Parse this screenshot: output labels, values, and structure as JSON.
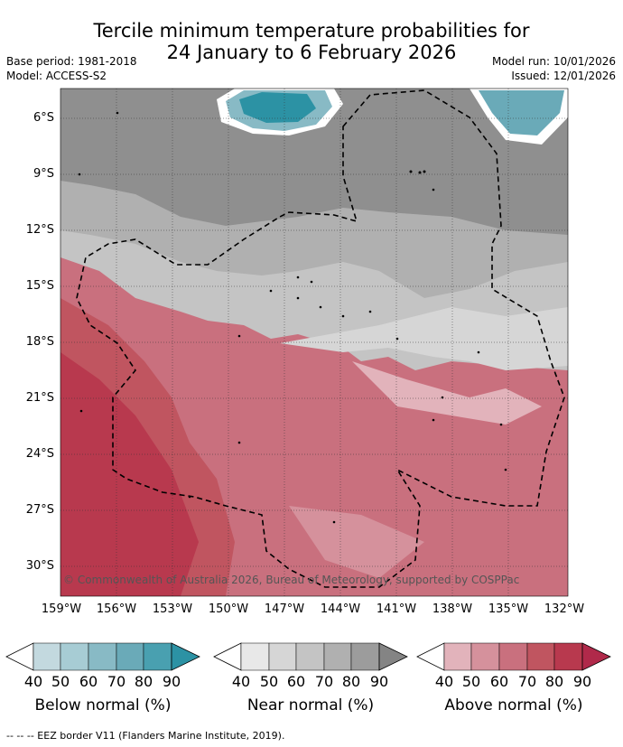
{
  "title_line1": "Tercile minimum temperature probabilities for",
  "title_line2": "24 January to 6 February 2026",
  "base_period": "Base period: 1981-2018",
  "model": "Model: ACCESS-S2",
  "model_run": "Model run: 10/01/2026",
  "issued": "Issued: 12/01/2026",
  "copyright": "© Commonwealth of Australia 2026, Bureau of Meteorology, supported by COSPPac",
  "lat_labels": [
    "6°S",
    "9°S",
    "12°S",
    "15°S",
    "18°S",
    "21°S",
    "24°S",
    "27°S",
    "30°S"
  ],
  "lon_labels": [
    "159°W",
    "156°W",
    "153°W",
    "150°W",
    "147°W",
    "144°W",
    "141°W",
    "138°W",
    "135°W",
    "132°W"
  ],
  "colorbars": [
    {
      "label": "Below normal (%)",
      "ticks": [
        "40",
        "50",
        "60",
        "70",
        "80",
        "90"
      ],
      "colors": [
        "#ffffff",
        "#c3d9df",
        "#a7ccd4",
        "#88bac5",
        "#6aaab8",
        "#49a0b0",
        "#2c92a4"
      ]
    },
    {
      "label": "Near normal (%)",
      "ticks": [
        "40",
        "50",
        "60",
        "70",
        "80",
        "90"
      ],
      "colors": [
        "#ffffff",
        "#e8e8e8",
        "#d6d6d6",
        "#c4c4c4",
        "#b0b0b0",
        "#9c9c9c",
        "#848484"
      ]
    },
    {
      "label": "Above normal (%)",
      "ticks": [
        "40",
        "50",
        "60",
        "70",
        "80",
        "90"
      ],
      "colors": [
        "#ffffff",
        "#e2b3bb",
        "#d5919c",
        "#c9707e",
        "#c05560",
        "#b8394e",
        "#b0294a"
      ]
    }
  ],
  "footer": "--  --  -- EEZ border V11 (Flanders Marine Institute, 2019)."
}
